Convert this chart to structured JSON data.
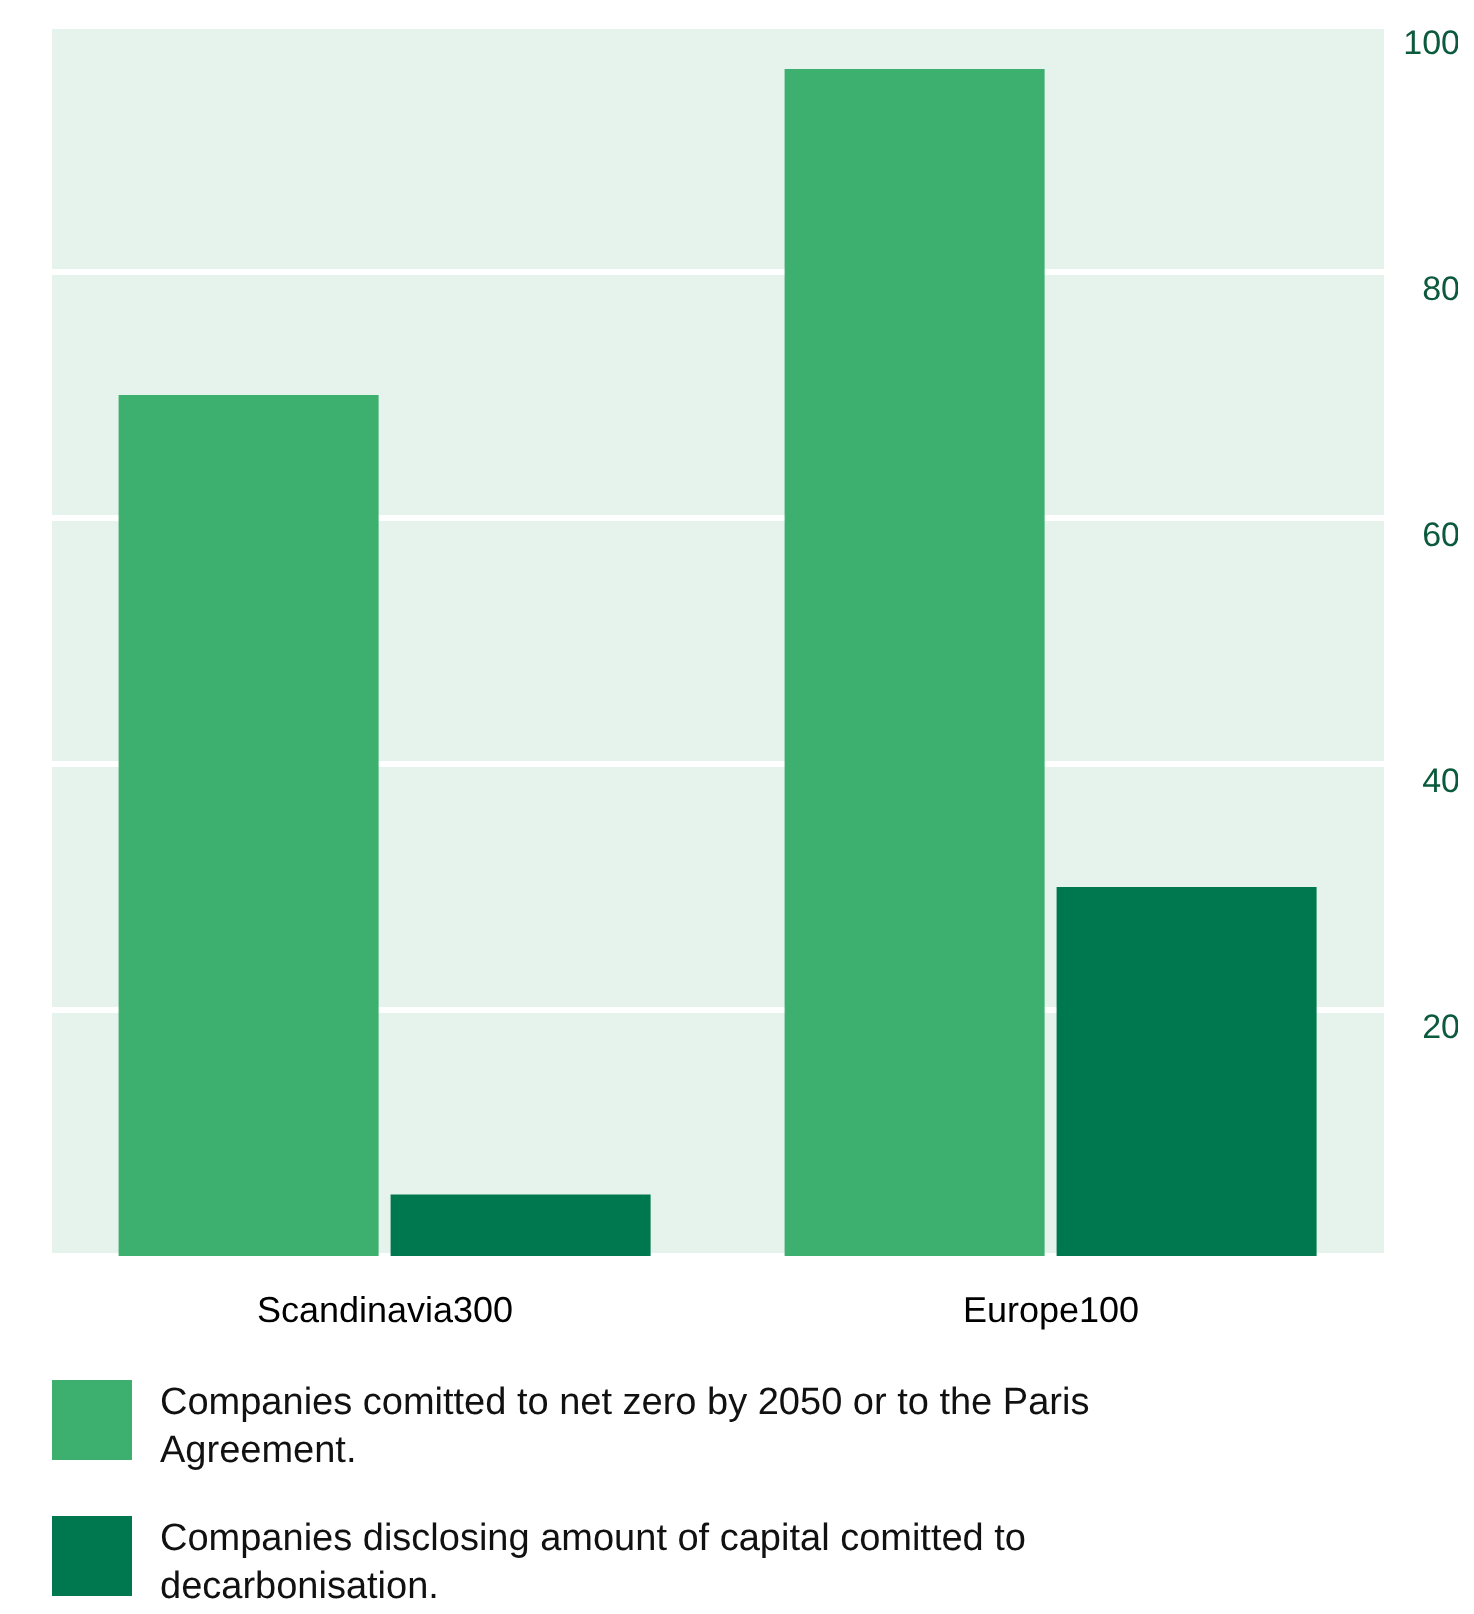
{
  "chart_data": {
    "type": "bar",
    "categories": [
      "Scandinavia300",
      "Europe100"
    ],
    "series": [
      {
        "name": "Companies comitted to net zero by 2050 or to the Paris Agreement.",
        "color": "#3daf6e",
        "values": [
          70,
          96.5
        ]
      },
      {
        "name": "Companies disclosing amount of capital comitted to decarbonisation.",
        "color": "#00784f",
        "values": [
          5,
          30
        ]
      }
    ],
    "ylim": [
      0,
      100
    ],
    "yticks": [
      20,
      40,
      60,
      80,
      100
    ],
    "grid": "y",
    "legend": "bottom"
  }
}
